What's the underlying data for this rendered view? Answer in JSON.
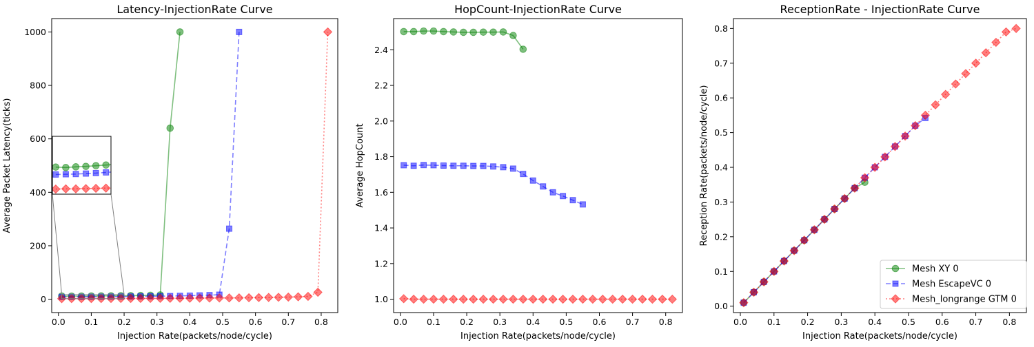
{
  "chart_data": [
    {
      "type": "line",
      "title": "Latency-InjectionRate Curve",
      "xlabel": "Injection Rate(packets/node/cycle)",
      "ylabel": "Average Packet Latency(ticks)",
      "xlim": [
        -0.0205,
        0.8505
      ],
      "ylim": [
        -50,
        1050
      ],
      "xticks": [
        0.0,
        0.1,
        0.2,
        0.3,
        0.4,
        0.5,
        0.6,
        0.7,
        0.8
      ],
      "xtick_labels": [
        "0.0",
        "0.1",
        "0.2",
        "0.3",
        "0.4",
        "0.5",
        "0.6",
        "0.7",
        "0.8"
      ],
      "yticks": [
        0,
        200,
        400,
        600,
        800,
        1000
      ],
      "ytick_labels": [
        "0",
        "200",
        "400",
        "600",
        "800",
        "1000"
      ],
      "legend": "none",
      "grid": false,
      "series": [
        {
          "name": "Mesh XY 0",
          "color": "#008000",
          "dash": "",
          "marker": "circle",
          "x": [
            0.01,
            0.04,
            0.07,
            0.1,
            0.13,
            0.16,
            0.19,
            0.22,
            0.25,
            0.28,
            0.31,
            0.34,
            0.37
          ],
          "y": [
            11.7,
            11.5,
            11.8,
            12.0,
            12.3,
            12.6,
            12.9,
            13.3,
            13.8,
            14.6,
            16.0,
            640,
            1000
          ]
        },
        {
          "name": "Mesh EscapeVC 0",
          "color": "#0000ff",
          "dash": "7,4",
          "marker": "square",
          "x": [
            0.01,
            0.04,
            0.07,
            0.1,
            0.13,
            0.16,
            0.19,
            0.22,
            0.25,
            0.28,
            0.31,
            0.34,
            0.37,
            0.4,
            0.43,
            0.46,
            0.49,
            0.52,
            0.55
          ],
          "y": [
            8.5,
            8.6,
            8.7,
            8.9,
            9.1,
            9.4,
            9.7,
            10.0,
            10.4,
            10.8,
            11.3,
            11.9,
            12.6,
            13.3,
            14.3,
            15.3,
            17.0,
            264,
            1000
          ]
        },
        {
          "name": "Mesh_longrange GTM 0",
          "color": "#ff0000",
          "dash": "2,3",
          "marker": "diamond",
          "x": [
            0.01,
            0.04,
            0.07,
            0.1,
            0.13,
            0.16,
            0.19,
            0.22,
            0.25,
            0.28,
            0.31,
            0.34,
            0.37,
            0.4,
            0.43,
            0.46,
            0.49,
            0.52,
            0.55,
            0.58,
            0.61,
            0.64,
            0.67,
            0.7,
            0.73,
            0.76,
            0.79,
            0.82
          ],
          "y": [
            2.2,
            2.3,
            2.3,
            2.4,
            2.5,
            2.6,
            2.7,
            2.8,
            2.9,
            3.0,
            3.2,
            3.4,
            3.6,
            3.8,
            4.0,
            4.3,
            4.6,
            4.9,
            5.2,
            5.6,
            6.1,
            6.6,
            7.2,
            8.0,
            9.0,
            10.5,
            26,
            1000
          ]
        }
      ],
      "inset": {
        "x": [
          0.0,
          0.175
        ],
        "y": [
          0,
          25
        ],
        "indicate_box": [
          0.01,
          0.2,
          2,
          17
        ]
      }
    },
    {
      "type": "line",
      "title": "HopCount-InjectionRate Curve",
      "xlabel": "Injection Rate(packets/node/cycle)",
      "ylabel": "Average HopCount",
      "xlim": [
        -0.0205,
        0.8505
      ],
      "ylim": [
        0.925,
        2.575
      ],
      "xticks": [
        0.0,
        0.1,
        0.2,
        0.3,
        0.4,
        0.5,
        0.6,
        0.7,
        0.8
      ],
      "xtick_labels": [
        "0.0",
        "0.1",
        "0.2",
        "0.3",
        "0.4",
        "0.5",
        "0.6",
        "0.7",
        "0.8"
      ],
      "yticks": [
        1.0,
        1.2,
        1.4,
        1.6,
        1.8,
        2.0,
        2.2,
        2.4
      ],
      "ytick_labels": [
        "1.0",
        "1.2",
        "1.4",
        "1.6",
        "1.8",
        "2.0",
        "2.2",
        "2.4"
      ],
      "legend": "none",
      "grid": false,
      "series": [
        {
          "name": "Mesh XY 0",
          "color": "#008000",
          "dash": "",
          "marker": "circle",
          "x": [
            0.01,
            0.04,
            0.07,
            0.1,
            0.13,
            0.16,
            0.19,
            0.22,
            0.25,
            0.28,
            0.31,
            0.34,
            0.37
          ],
          "y": [
            2.502,
            2.502,
            2.505,
            2.505,
            2.502,
            2.5,
            2.498,
            2.498,
            2.499,
            2.499,
            2.5,
            2.48,
            2.403
          ]
        },
        {
          "name": "Mesh EscapeVC 0",
          "color": "#0000ff",
          "dash": "7,4",
          "marker": "square",
          "x": [
            0.01,
            0.04,
            0.07,
            0.1,
            0.13,
            0.16,
            0.19,
            0.22,
            0.25,
            0.28,
            0.31,
            0.34,
            0.37,
            0.4,
            0.43,
            0.46,
            0.49,
            0.52,
            0.55
          ],
          "y": [
            1.752,
            1.749,
            1.753,
            1.752,
            1.75,
            1.749,
            1.749,
            1.748,
            1.748,
            1.745,
            1.741,
            1.733,
            1.703,
            1.666,
            1.633,
            1.6,
            1.579,
            1.556,
            1.532
          ]
        },
        {
          "name": "Mesh_longrange GTM 0",
          "color": "#ff0000",
          "dash": "2,3",
          "marker": "diamond",
          "x": [
            0.01,
            0.04,
            0.07,
            0.1,
            0.13,
            0.16,
            0.19,
            0.22,
            0.25,
            0.28,
            0.31,
            0.34,
            0.37,
            0.4,
            0.43,
            0.46,
            0.49,
            0.52,
            0.55,
            0.58,
            0.61,
            0.64,
            0.67,
            0.7,
            0.73,
            0.76,
            0.79,
            0.82
          ],
          "y": [
            1.003,
            1.0,
            1.0,
            1.0,
            1.0,
            1.0,
            1.0,
            1.0,
            1.0,
            1.0,
            1.0,
            1.0,
            1.0,
            1.0,
            1.0,
            1.0,
            1.0,
            1.0,
            1.0,
            1.0,
            1.0,
            1.0,
            1.0,
            1.0,
            1.0,
            1.0,
            1.0,
            1.0
          ]
        }
      ]
    },
    {
      "type": "line",
      "title": "ReceptionRate - InjectionRate Curve",
      "xlabel": "Injection Rate(packets/node/cycle)",
      "ylabel": "Reception Rate(packets/node/cycle)",
      "xlim": [
        -0.0205,
        0.8505
      ],
      "ylim": [
        -0.0185,
        0.8285
      ],
      "xticks": [
        0.0,
        0.1,
        0.2,
        0.3,
        0.4,
        0.5,
        0.6,
        0.7,
        0.8
      ],
      "xtick_labels": [
        "0.0",
        "0.1",
        "0.2",
        "0.3",
        "0.4",
        "0.5",
        "0.6",
        "0.7",
        "0.8"
      ],
      "yticks": [
        0.0,
        0.1,
        0.2,
        0.3,
        0.4,
        0.5,
        0.6,
        0.7,
        0.8
      ],
      "ytick_labels": [
        "0.0",
        "0.1",
        "0.2",
        "0.3",
        "0.4",
        "0.5",
        "0.6",
        "0.7",
        "0.8"
      ],
      "legend": "lower-right",
      "grid": false,
      "series": [
        {
          "name": "Mesh XY 0",
          "color": "#008000",
          "dash": "",
          "marker": "circle",
          "x": [
            0.01,
            0.04,
            0.07,
            0.1,
            0.13,
            0.16,
            0.19,
            0.22,
            0.25,
            0.28,
            0.31,
            0.34,
            0.37
          ],
          "y": [
            0.01,
            0.04,
            0.07,
            0.1,
            0.13,
            0.16,
            0.19,
            0.22,
            0.25,
            0.28,
            0.31,
            0.34,
            0.357
          ]
        },
        {
          "name": "Mesh EscapeVC 0",
          "color": "#0000ff",
          "dash": "7,4",
          "marker": "square",
          "x": [
            0.01,
            0.04,
            0.07,
            0.1,
            0.13,
            0.16,
            0.19,
            0.22,
            0.25,
            0.28,
            0.31,
            0.34,
            0.37,
            0.4,
            0.43,
            0.46,
            0.49,
            0.52,
            0.55
          ],
          "y": [
            0.01,
            0.04,
            0.07,
            0.1,
            0.13,
            0.16,
            0.19,
            0.22,
            0.25,
            0.28,
            0.31,
            0.34,
            0.37,
            0.4,
            0.43,
            0.46,
            0.49,
            0.52,
            0.542
          ]
        },
        {
          "name": "Mesh_longrange GTM 0",
          "color": "#ff0000",
          "dash": "2,3",
          "marker": "diamond",
          "x": [
            0.01,
            0.04,
            0.07,
            0.1,
            0.13,
            0.16,
            0.19,
            0.22,
            0.25,
            0.28,
            0.31,
            0.34,
            0.37,
            0.4,
            0.43,
            0.46,
            0.49,
            0.52,
            0.55,
            0.58,
            0.61,
            0.64,
            0.67,
            0.7,
            0.73,
            0.76,
            0.79,
            0.82
          ],
          "y": [
            0.01,
            0.04,
            0.07,
            0.1,
            0.13,
            0.16,
            0.19,
            0.22,
            0.25,
            0.28,
            0.31,
            0.34,
            0.37,
            0.4,
            0.43,
            0.46,
            0.49,
            0.52,
            0.55,
            0.58,
            0.61,
            0.64,
            0.67,
            0.7,
            0.73,
            0.76,
            0.79,
            0.8
          ]
        }
      ]
    }
  ]
}
